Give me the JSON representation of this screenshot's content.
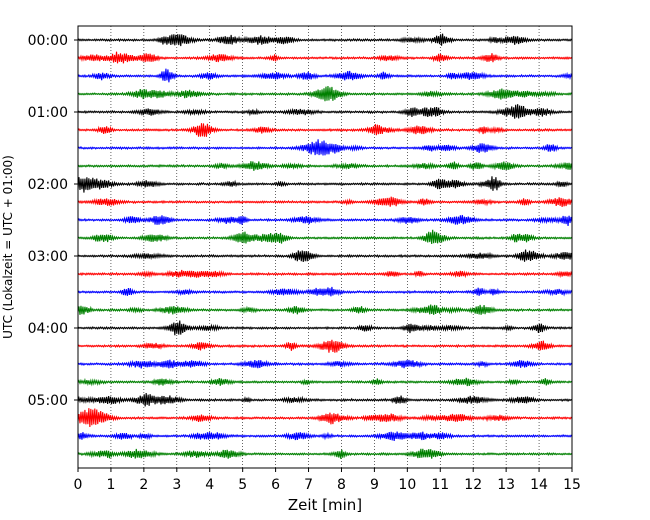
{
  "chart_data": {
    "type": "line",
    "subtype": "helicorder",
    "xlabel": "Zeit  [min]",
    "ylabel": "UTC (Lokalzeit = UTC + 01:00)",
    "xlim": [
      0,
      15
    ],
    "xticks": [
      "0",
      "1",
      "2",
      "3",
      "4",
      "5",
      "6",
      "7",
      "8",
      "9",
      "10",
      "11",
      "12",
      "13",
      "14",
      "15"
    ],
    "ytick_labels": [
      "00:00",
      "01:00",
      "02:00",
      "03:00",
      "04:00",
      "05:00"
    ],
    "traces_per_hour": 4,
    "trace_count": 24,
    "trace_colors": [
      "#000000",
      "#ff0000",
      "#0000ff",
      "#008000"
    ],
    "grid": "vertical dotted",
    "legend": "none",
    "title": ""
  }
}
